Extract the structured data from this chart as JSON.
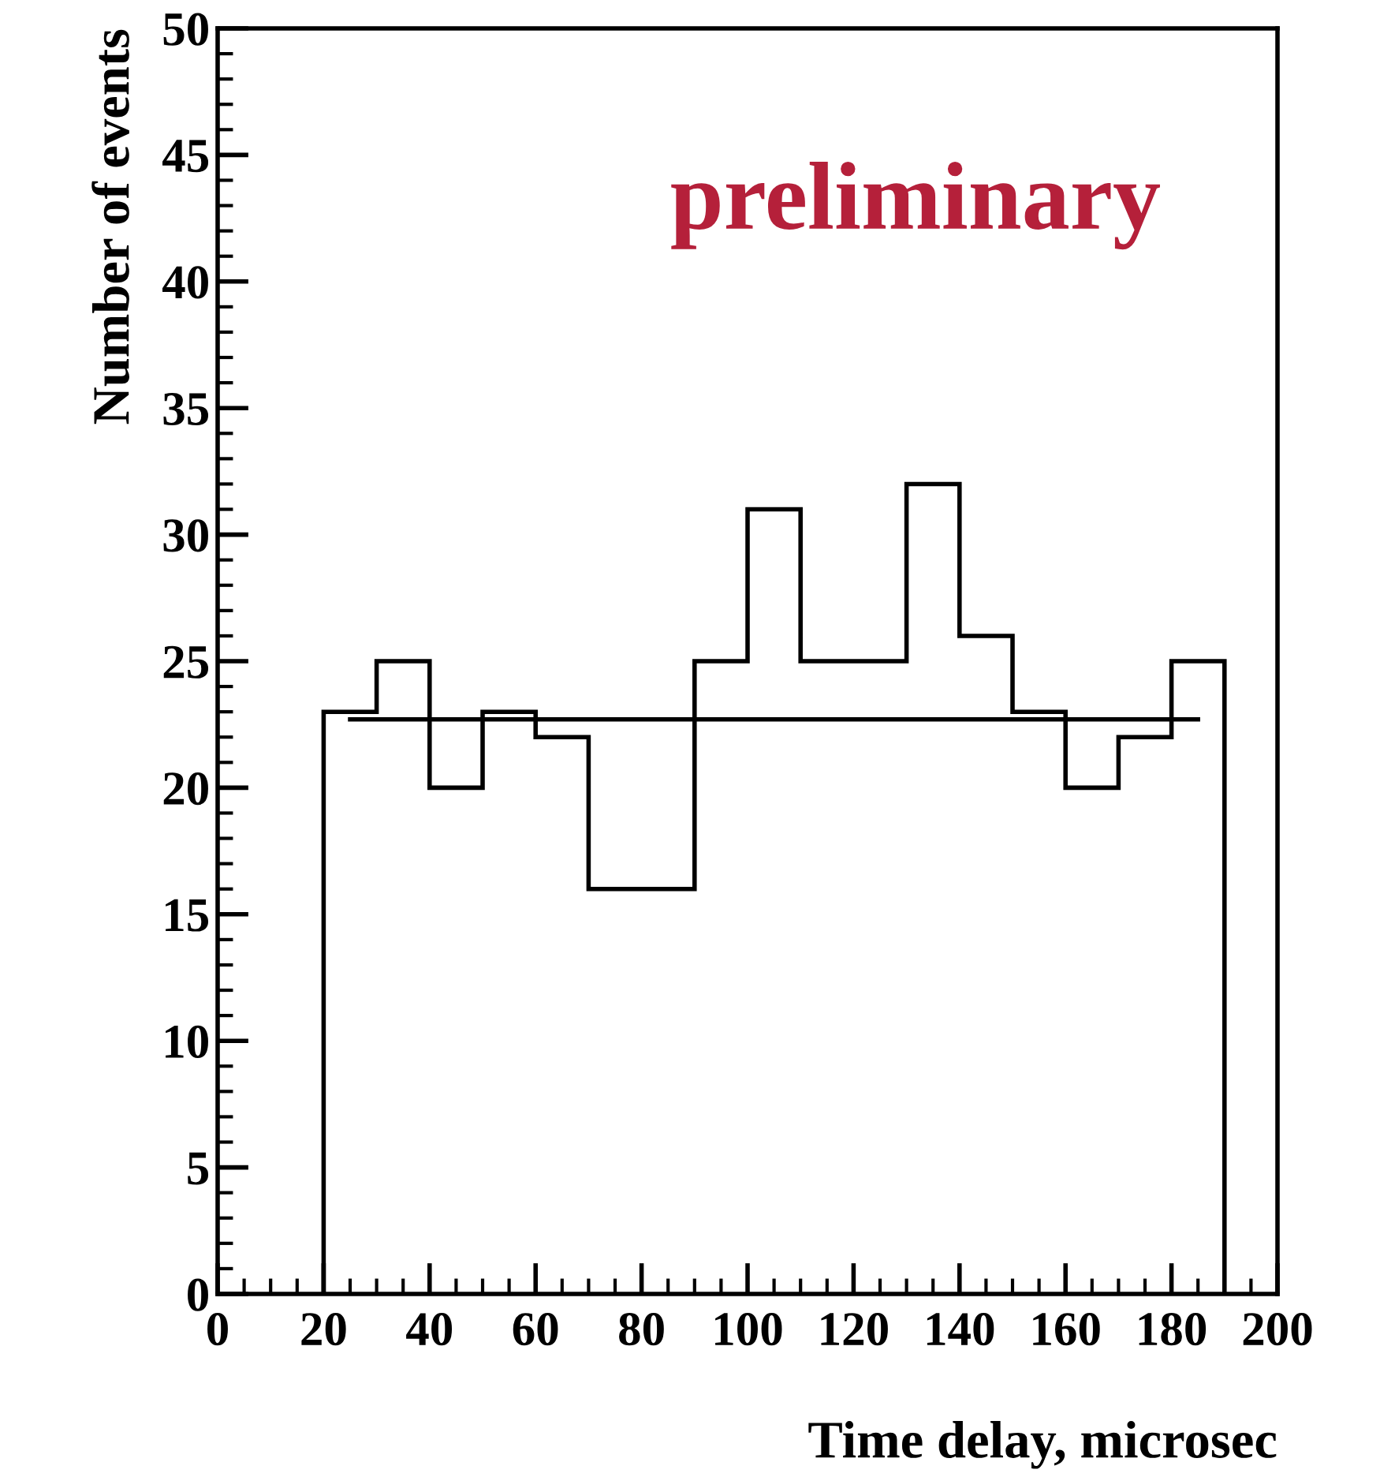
{
  "chart_data": {
    "type": "histogram",
    "xlabel": "Time delay, microsec",
    "ylabel": "Number of events",
    "bins": [
      20,
      30,
      40,
      50,
      60,
      70,
      80,
      90,
      100,
      110,
      120,
      130,
      140,
      150,
      160,
      170,
      180,
      190
    ],
    "values": [
      23,
      25,
      20,
      23,
      22,
      16,
      16,
      25,
      31,
      25,
      25,
      32,
      26,
      23,
      20,
      22,
      25
    ],
    "color": "#000000",
    "series": [
      {
        "type": "line",
        "x": [
          25,
          185
        ],
        "values": [
          22.7,
          22.7
        ],
        "color": "#000000"
      }
    ],
    "xlim": [
      0,
      200
    ],
    "xticks": [
      0,
      20,
      40,
      60,
      80,
      100,
      120,
      140,
      160,
      180,
      200
    ],
    "ylim": [
      0,
      50
    ],
    "yticks": [
      0,
      5,
      10,
      15,
      20,
      25,
      30,
      35,
      40,
      45,
      50
    ],
    "grid": false,
    "annotations": [
      "preliminary"
    ]
  }
}
